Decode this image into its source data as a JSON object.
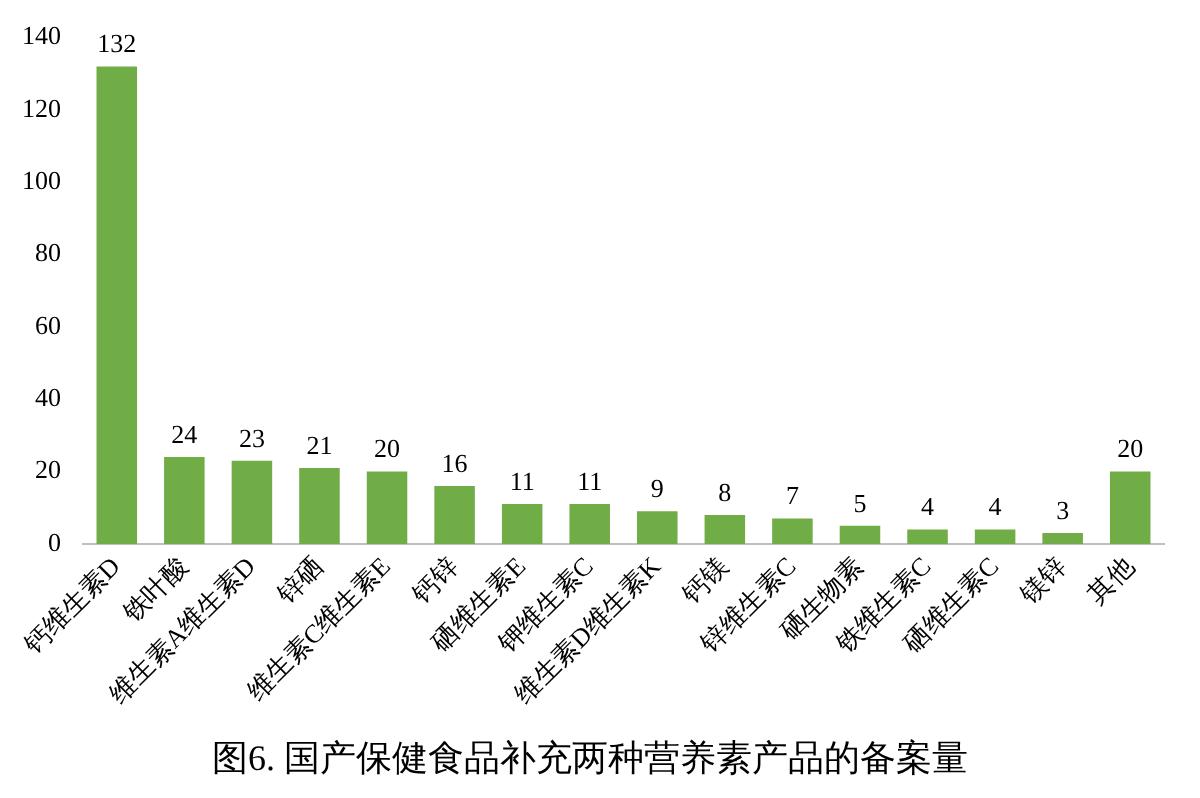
{
  "chart_data": {
    "type": "bar",
    "title": "图6. 国产保健食品补充两种营养素产品的备案量",
    "categories": [
      "钙维生素D",
      "铁叶酸",
      "维生素A维生素D",
      "锌硒",
      "维生素C维生素E",
      "钙锌",
      "硒维生素E",
      "钾维生素C",
      "维生素D维生素K",
      "钙镁",
      "锌维生素C",
      "硒生物素",
      "铁维生素C",
      "硒维生素C",
      "镁锌",
      "其他"
    ],
    "values": [
      132,
      24,
      23,
      21,
      20,
      16,
      11,
      11,
      9,
      8,
      7,
      5,
      4,
      4,
      3,
      20
    ],
    "color": "#70ad47",
    "ylim": [
      0,
      140
    ],
    "yticks": [
      0,
      20,
      40,
      60,
      80,
      100,
      120,
      140
    ],
    "grid": false,
    "data_labels": true,
    "legend": false
  }
}
